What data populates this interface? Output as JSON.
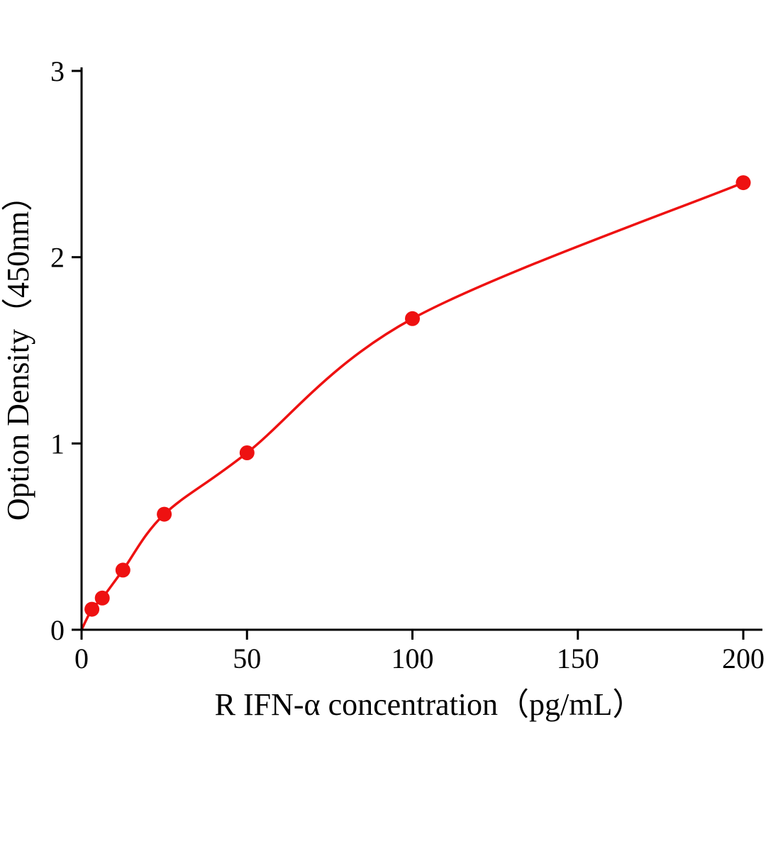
{
  "chart_data": {
    "type": "scatter",
    "title": "",
    "xlabel": "R IFN-α concentration（pg/mL）",
    "ylabel": "Option Density（450nm）",
    "x": [
      3.125,
      6.25,
      12.5,
      25,
      50,
      100,
      200
    ],
    "y": [
      0.11,
      0.17,
      0.32,
      0.62,
      0.95,
      1.67,
      2.4
    ],
    "curve_start": {
      "x": 0,
      "y": 0
    },
    "x_ticks": [
      0,
      50,
      100,
      150,
      200
    ],
    "y_ticks": [
      0,
      1,
      2,
      3
    ],
    "xlim": [
      0,
      206
    ],
    "ylim": [
      0,
      3
    ],
    "grid": false,
    "legend": "none",
    "colors": {
      "points": "#ee1111",
      "curve": "#ee1111",
      "axis": "#000000"
    },
    "marker_radius": 10.5
  }
}
